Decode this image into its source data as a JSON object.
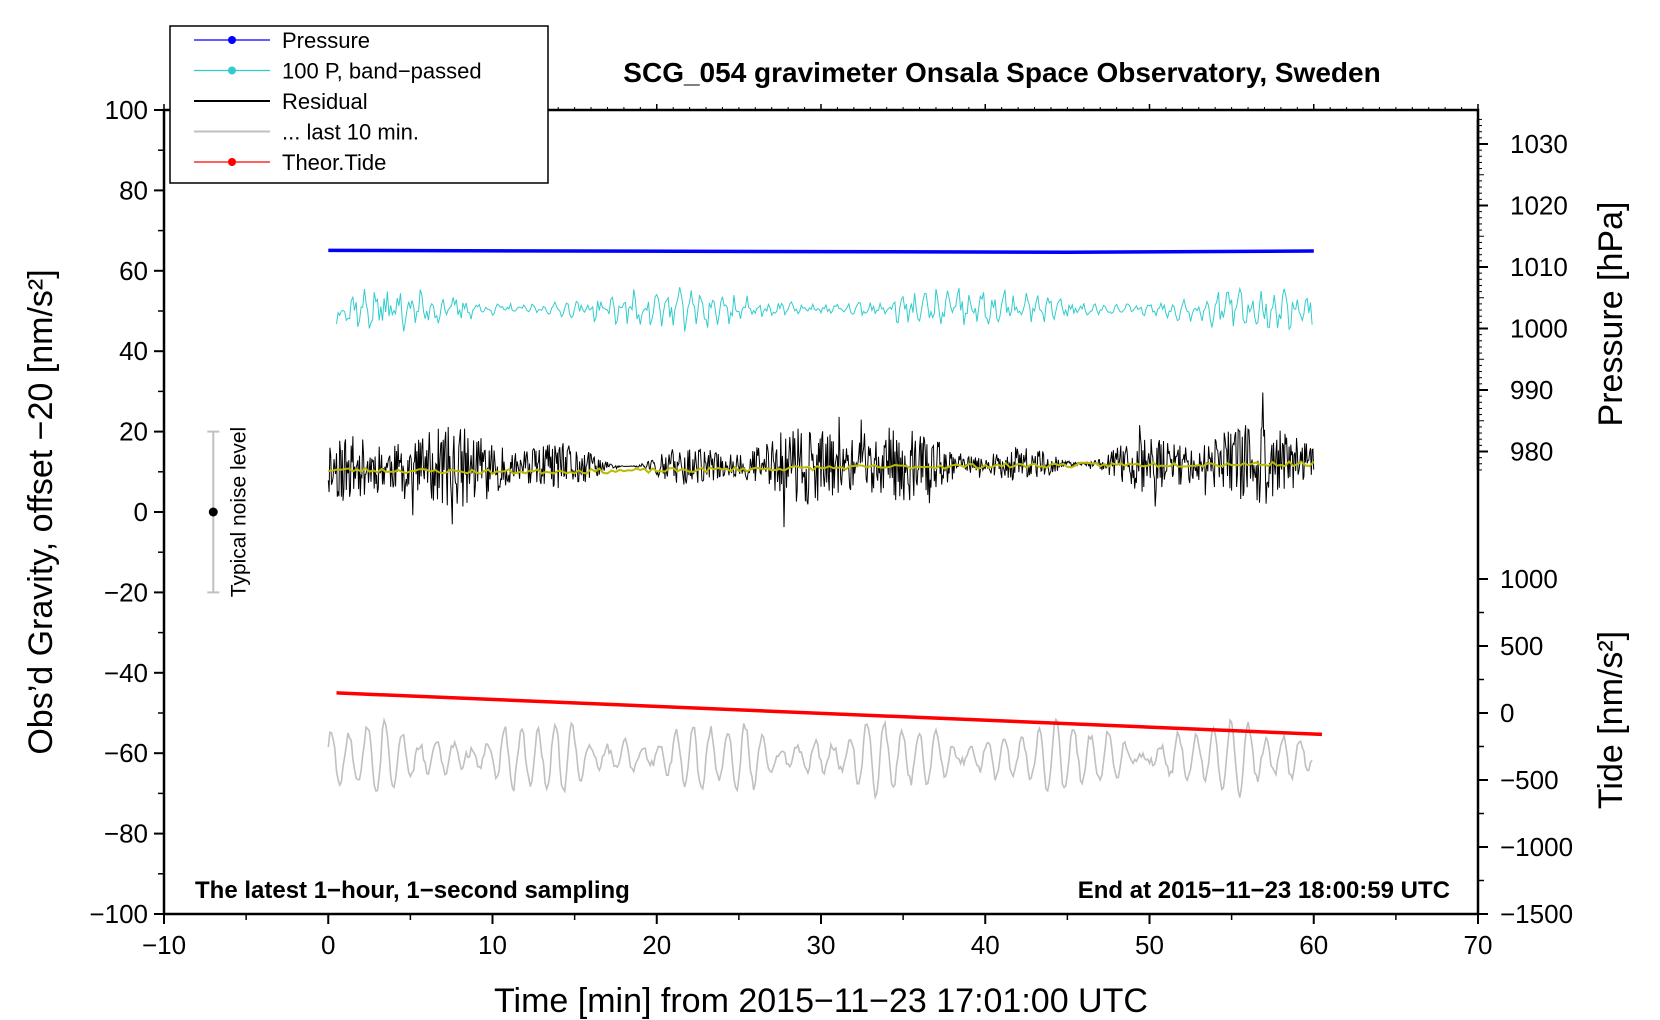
{
  "chart_data": {
    "type": "line",
    "title": "SCG_054 gravimeter Onsala Space Observatory, Sweden",
    "xlabel": "Time [min] from 2015−11−23 17:01:00 UTC",
    "ylabel": "Obs’d Gravity, offset −20 [nm/s²]",
    "ylabel_right_pressure": "Pressure [hPa]",
    "ylabel_right_tide": "Tide [nm/s²]",
    "xlim": [
      -10,
      70
    ],
    "ylim": [
      -100,
      100
    ],
    "x_ticks": [
      -10,
      0,
      10,
      20,
      30,
      40,
      50,
      60,
      70
    ],
    "x_tick_labels": [
      "−10",
      "0",
      "10",
      "20",
      "30",
      "40",
      "50",
      "60",
      "70"
    ],
    "y_ticks": [
      -100,
      -80,
      -60,
      -40,
      -20,
      0,
      20,
      40,
      60,
      80,
      100
    ],
    "y_tick_labels": [
      "−100",
      "−80",
      "−60",
      "−40",
      "−20",
      "0",
      "20",
      "40",
      "60",
      "80",
      "100"
    ],
    "pressure_axis": {
      "ticks": [
        980,
        990,
        1000,
        1010,
        1020,
        1030
      ],
      "tick_labels": [
        "980",
        "990",
        "1000",
        "1010",
        "1020",
        "1030"
      ],
      "range": [
        977,
        1034
      ]
    },
    "tide_axis": {
      "ticks": [
        -1500,
        -1000,
        -500,
        0,
        500,
        1000
      ],
      "tick_labels": [
        "−1500",
        "−1000",
        "−500",
        "0",
        "500",
        "1000"
      ],
      "range": [
        -1500,
        1000
      ]
    },
    "legend": [
      {
        "label": "Pressure",
        "color": "#0000ff",
        "marker": true
      },
      {
        "label": "100 P, band−passed",
        "color": "#33cccc",
        "marker": true
      },
      {
        "label": "Residual",
        "color": "#000000",
        "marker": false
      },
      {
        "label": "... last 10 min.",
        "color": "#c0c0c0",
        "marker": false
      },
      {
        "label": "Theor.Tide",
        "color": "#ff0000",
        "marker": true
      }
    ],
    "legend_position": "top-left",
    "series": [
      {
        "name": "Pressure",
        "axis": "pressure",
        "color": "#0000ff",
        "x": [
          0,
          15,
          30,
          45,
          60
        ],
        "values": [
          1012.7,
          1012.6,
          1012.5,
          1012.4,
          1012.6
        ]
      },
      {
        "name": "100 P, band−passed",
        "axis": "left",
        "color": "#33cccc",
        "x_range": [
          0.5,
          60
        ],
        "mean": 50.5,
        "amplitude": 3.5
      },
      {
        "name": "Residual",
        "axis": "left",
        "color": "#000000",
        "x_range": [
          0,
          60
        ],
        "mean": 11,
        "amplitude": 7
      },
      {
        "name": "Residual smoothed",
        "axis": "left",
        "color": "#bbbb00",
        "x": [
          0,
          10,
          20,
          30,
          40,
          50,
          60
        ],
        "values": [
          10.5,
          10,
          10.3,
          11,
          11.5,
          11.8,
          12
        ]
      },
      {
        "name": "... last 10 min.",
        "axis": "left",
        "color": "#c0c0c0",
        "x_range": [
          0,
          60
        ],
        "mean": -61,
        "amplitude": 8
      },
      {
        "name": "Theor.Tide",
        "axis": "tide",
        "color": "#ff0000",
        "x": [
          0.5,
          60.5
        ],
        "values": [
          150,
          -160
        ]
      }
    ],
    "annotations": {
      "noise_label": "Typical noise level",
      "noise_center": 0,
      "noise_range": [
        -20,
        20
      ],
      "noise_x": -7,
      "bottom_left": "The latest 1−hour, 1−second sampling",
      "bottom_right": "End at 2015−11−23 18:00:59 UTC"
    }
  }
}
